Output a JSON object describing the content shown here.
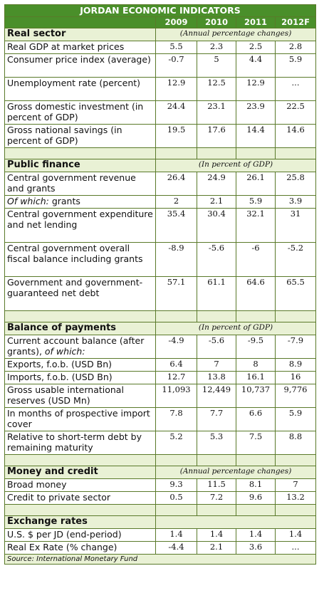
{
  "title": "JORDAN ECONOMIC INDICATORS",
  "years": [
    "2009",
    "2010",
    "2011",
    "2012F"
  ],
  "sections": [
    {
      "name": "Real sector",
      "note": "(Annual percentage changes)",
      "rows": [
        {
          "label": "Real GDP at market prices",
          "values": [
            "5.5",
            "2.3",
            "2.5",
            "2.8"
          ]
        },
        {
          "label": "Consumer price index (average)",
          "values": [
            "-0.7",
            "5",
            "4.4",
            "5.9"
          ]
        },
        {
          "label": "Unemployment rate (percent)",
          "values": [
            "12.9",
            "12.5",
            "12.9",
            "..."
          ]
        },
        {
          "label": "Gross domestic investment (in percent of GDP)",
          "values": [
            "24.4",
            "23.1",
            "23.9",
            "22.5"
          ]
        },
        {
          "label": "Gross national savings (in percent of GDP)",
          "values": [
            "19.5",
            "17.6",
            "14.4",
            "14.6"
          ]
        }
      ]
    },
    {
      "name": "Public finance",
      "note": "(In percent of GDP)",
      "rows": [
        {
          "label": "Central government revenue and grants",
          "values": [
            "26.4",
            "24.9",
            "26.1",
            "25.8"
          ]
        },
        {
          "label_italic": "Of which:",
          "label_tail": " grants",
          "values": [
            "2",
            "2.1",
            "5.9",
            "3.9"
          ]
        },
        {
          "label": "Central government expenditure and net lending",
          "values": [
            "35.4",
            "30.4",
            "32.1",
            "31"
          ]
        },
        {
          "label": "Central government overall fiscal balance including grants",
          "values": [
            "-8.9",
            "-5.6",
            "-6",
            "-5.2"
          ]
        },
        {
          "label": "Government and government-guaranteed net debt",
          "values": [
            "57.1",
            "61.1",
            "64.6",
            "65.5"
          ]
        }
      ]
    },
    {
      "name": "Balance of payments",
      "note": "(In percent of GDP)",
      "rows": [
        {
          "label": "Current account balance (after grants), ",
          "label_italic": "of which:",
          "values": [
            "-4.9",
            "-5.6",
            "-9.5",
            "-7.9"
          ]
        },
        {
          "label": "Exports, f.o.b. (USD Bn)",
          "values": [
            "6.4",
            "7",
            "8",
            "8.9"
          ]
        },
        {
          "label": "Imports, f.o.b. (USD Bn)",
          "values": [
            "12.7",
            "13.8",
            "16.1",
            "16"
          ]
        },
        {
          "label": "Gross usable international reserves (USD Mn)",
          "values": [
            "11,093",
            "12,449",
            "10,737",
            "9,776"
          ]
        },
        {
          "label": "In months of prospective import cover",
          "values": [
            "7.8",
            "7.7",
            "6.6",
            "5.9"
          ]
        },
        {
          "label": "Relative to short-term debt by remaining maturity",
          "values": [
            "5.2",
            "5.3",
            "7.5",
            "8.8"
          ]
        }
      ]
    },
    {
      "name": "Money and credit",
      "note": "(Annual percentage changes)",
      "rows": [
        {
          "label": "Broad money",
          "values": [
            "9.3",
            "11.5",
            "8.1",
            "7"
          ]
        },
        {
          "label": "Credit to private sector",
          "values": [
            "0.5",
            "7.2",
            "9.6",
            "13.2"
          ]
        }
      ]
    },
    {
      "name": "Exchange rates",
      "note": "",
      "rows": [
        {
          "label": "U.S. $ per JD (end-period)",
          "values": [
            "1.4",
            "1.4",
            "1.4",
            "1.4"
          ]
        },
        {
          "label": "Real Ex Rate (% change)",
          "values": [
            "-4.4",
            "2.1",
            "3.6",
            "..."
          ]
        }
      ]
    }
  ],
  "source": "Source: International Monetary Fund"
}
